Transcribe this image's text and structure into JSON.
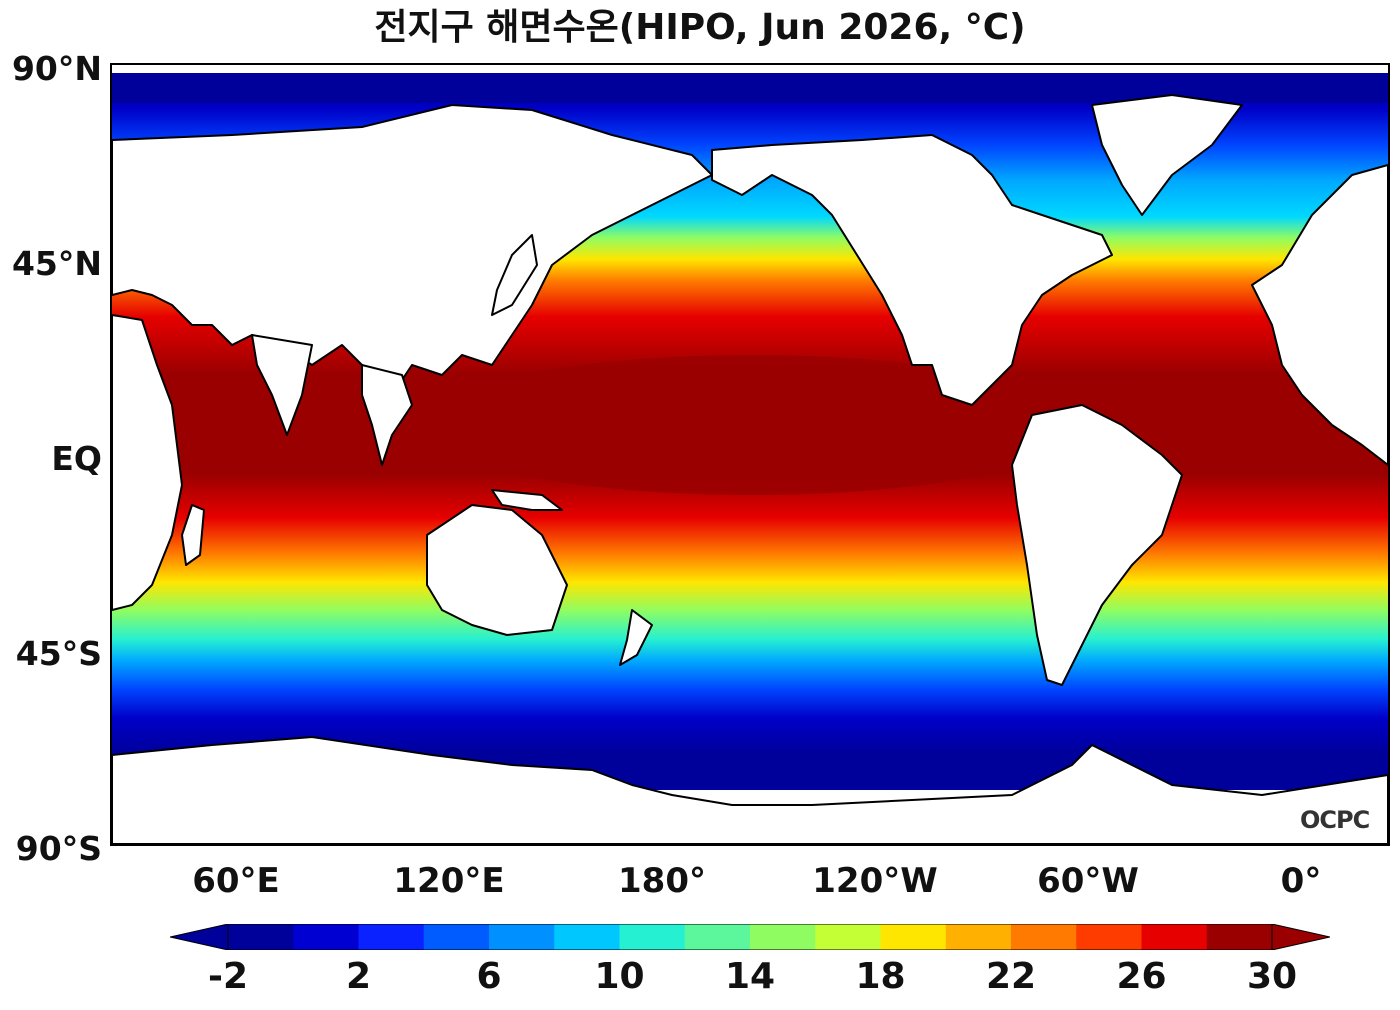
{
  "title": "전지구 해면수온(HIPO, Jun 2026, °C)",
  "lat_labels": [
    "90°N",
    "45°N",
    "EQ",
    "45°S",
    "90°S"
  ],
  "lon_labels": [
    "60°E",
    "120°E",
    "180°",
    "120°W",
    "60°W",
    "0°"
  ],
  "colorbar": {
    "tick_labels": [
      "-2",
      "2",
      "6",
      "10",
      "14",
      "18",
      "22",
      "26",
      "30"
    ],
    "levels": [
      -2,
      0,
      2,
      4,
      6,
      8,
      10,
      12,
      14,
      16,
      18,
      20,
      22,
      24,
      26,
      28,
      30
    ],
    "colors": [
      "#00009a",
      "#0000d2",
      "#0a22ff",
      "#005cff",
      "#0090ff",
      "#00c8ff",
      "#26f0d2",
      "#5cf79c",
      "#8ffd62",
      "#c4ff36",
      "#ffe600",
      "#ffb000",
      "#ff7a00",
      "#ff3c00",
      "#e60000",
      "#9a0000"
    ],
    "extend_low_color": "#00009a",
    "extend_high_color": "#9a0000"
  },
  "watermark": "OCPC"
}
